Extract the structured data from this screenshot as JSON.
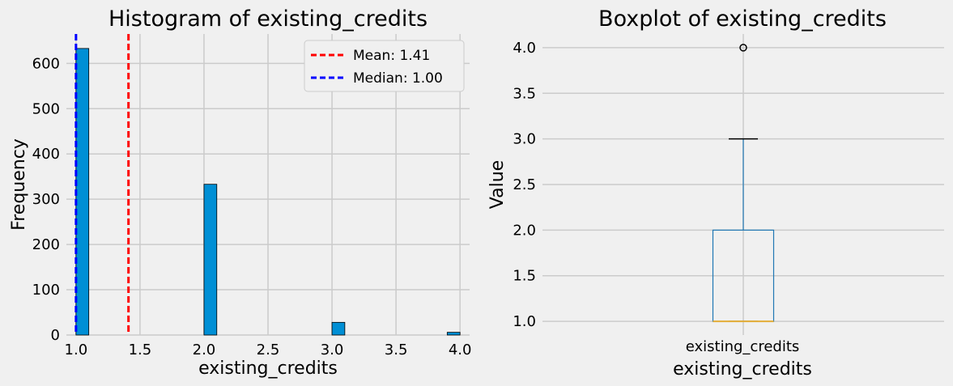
{
  "chart_data": [
    {
      "type": "bar",
      "title": "Histogram of existing_credits",
      "xlabel": "existing_credits",
      "ylabel": "Frequency",
      "xlim": [
        0.925,
        4.075
      ],
      "ylim": [
        0,
        665
      ],
      "xticks": [
        "1.0",
        "1.5",
        "2.0",
        "2.5",
        "3.0",
        "3.5",
        "4.0"
      ],
      "yticks": [
        "0",
        "100",
        "200",
        "300",
        "400",
        "500",
        "600"
      ],
      "bins": [
        {
          "x0": 1.0,
          "x1": 1.1,
          "value": 633
        },
        {
          "x0": 2.0,
          "x1": 2.1,
          "value": 333
        },
        {
          "x0": 3.0,
          "x1": 3.1,
          "value": 28
        },
        {
          "x0": 3.9,
          "x1": 4.0,
          "value": 6
        }
      ],
      "bar_color": "#008fd5",
      "grid": true,
      "lines": [
        {
          "name": "Mean: 1.41",
          "x": 1.41,
          "color": "#ff0000",
          "style": "dashed"
        },
        {
          "name": "Median: 1.00",
          "x": 1.0,
          "color": "#0000ff",
          "style": "dashed"
        }
      ],
      "legend": "top-right"
    },
    {
      "type": "boxplot",
      "title": "Boxplot of existing_credits",
      "xlabel": "existing_credits",
      "ylabel": "Value",
      "categories": [
        "existing_credits"
      ],
      "ylim": [
        0.85,
        4.15
      ],
      "yticks": [
        "1.0",
        "1.5",
        "2.0",
        "2.5",
        "3.0",
        "3.5",
        "4.0"
      ],
      "box": {
        "min": 1.0,
        "q1": 1.0,
        "median": 1.0,
        "q3": 2.0,
        "max": 3.0,
        "outliers": [
          4.0
        ]
      },
      "box_color": "#1f77b4",
      "median_color": "#e5ae38",
      "grid": true
    }
  ]
}
